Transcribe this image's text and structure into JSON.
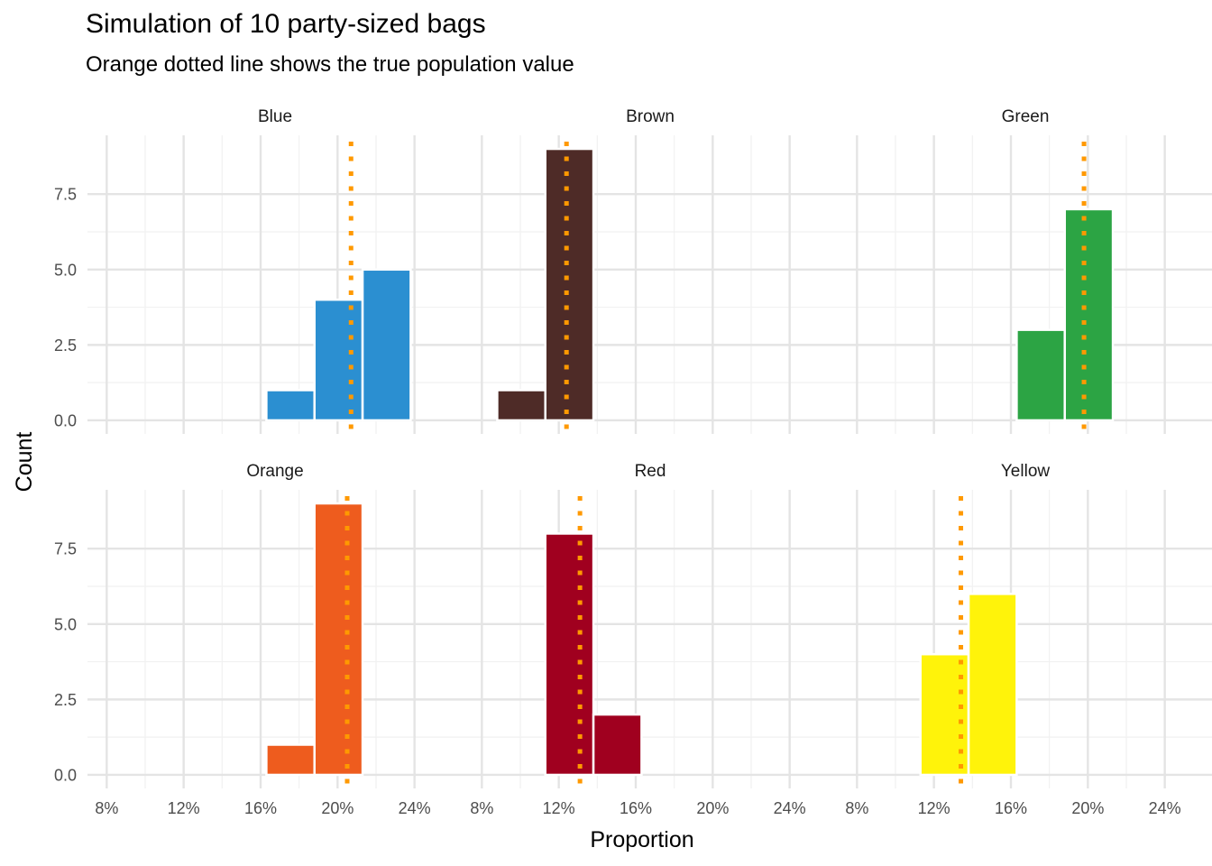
{
  "title": "Simulation of 10 party-sized bags",
  "subtitle": "Orange dotted line shows the true population value",
  "chart_data": {
    "type": "bar",
    "subtype": "faceted-histogram",
    "xlabel": "Proportion",
    "ylabel": "Count",
    "x_ticks": [
      "8%",
      "12%",
      "16%",
      "20%",
      "24%"
    ],
    "x_tick_values": [
      0.08,
      0.12,
      0.16,
      0.2,
      0.24
    ],
    "xlim": [
      0.07,
      0.265
    ],
    "y_ticks": [
      "0.0",
      "2.5",
      "5.0",
      "7.5"
    ],
    "y_tick_values": [
      0,
      2.5,
      5,
      7.5
    ],
    "ylim": [
      -0.45,
      9.45
    ],
    "grid": true,
    "bin_width": 0.025,
    "reference_line_color": "#FF9900",
    "facets": [
      {
        "label": "Blue",
        "color": "#2B8FD1",
        "true_value": 0.207,
        "bins": [
          {
            "center": 0.1755,
            "count": 1
          },
          {
            "center": 0.2005,
            "count": 4
          },
          {
            "center": 0.2255,
            "count": 5
          }
        ]
      },
      {
        "label": "Brown",
        "color": "#4E2B27",
        "true_value": 0.124,
        "bins": [
          {
            "center": 0.1005,
            "count": 1
          },
          {
            "center": 0.1255,
            "count": 9
          }
        ]
      },
      {
        "label": "Green",
        "color": "#2CA444",
        "true_value": 0.198,
        "bins": [
          {
            "center": 0.1755,
            "count": 3
          },
          {
            "center": 0.2005,
            "count": 7
          }
        ]
      },
      {
        "label": "Orange",
        "color": "#EE5C1E",
        "true_value": 0.205,
        "bins": [
          {
            "center": 0.1755,
            "count": 1
          },
          {
            "center": 0.2005,
            "count": 9
          }
        ]
      },
      {
        "label": "Red",
        "color": "#A0001F",
        "true_value": 0.131,
        "bins": [
          {
            "center": 0.1255,
            "count": 8
          },
          {
            "center": 0.1505,
            "count": 2
          }
        ]
      },
      {
        "label": "Yellow",
        "color": "#FFF30A",
        "true_value": 0.134,
        "bins": [
          {
            "center": 0.1255,
            "count": 4
          },
          {
            "center": 0.1505,
            "count": 6
          }
        ]
      }
    ]
  }
}
